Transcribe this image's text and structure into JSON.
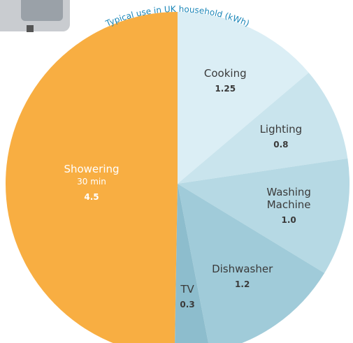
{
  "chart_data": {
    "type": "pie",
    "title": "Typical use in UK household (kWh)",
    "categories": [
      "Cooking",
      "Lighting",
      "Washing Machine",
      "Dishwasher",
      "TV",
      "Showering"
    ],
    "values": [
      1.25,
      0.8,
      1.0,
      1.2,
      0.3,
      4.5
    ],
    "value_labels": [
      "1.25",
      "0.8",
      "1.0",
      "1.2",
      "0.3",
      "4.5"
    ],
    "colors": [
      "#dbeef5",
      "#c9e4ed",
      "#b6d9e4",
      "#a0cbd9",
      "#8dbdcd",
      "#f8ae42"
    ],
    "annotation": "30 min"
  }
}
